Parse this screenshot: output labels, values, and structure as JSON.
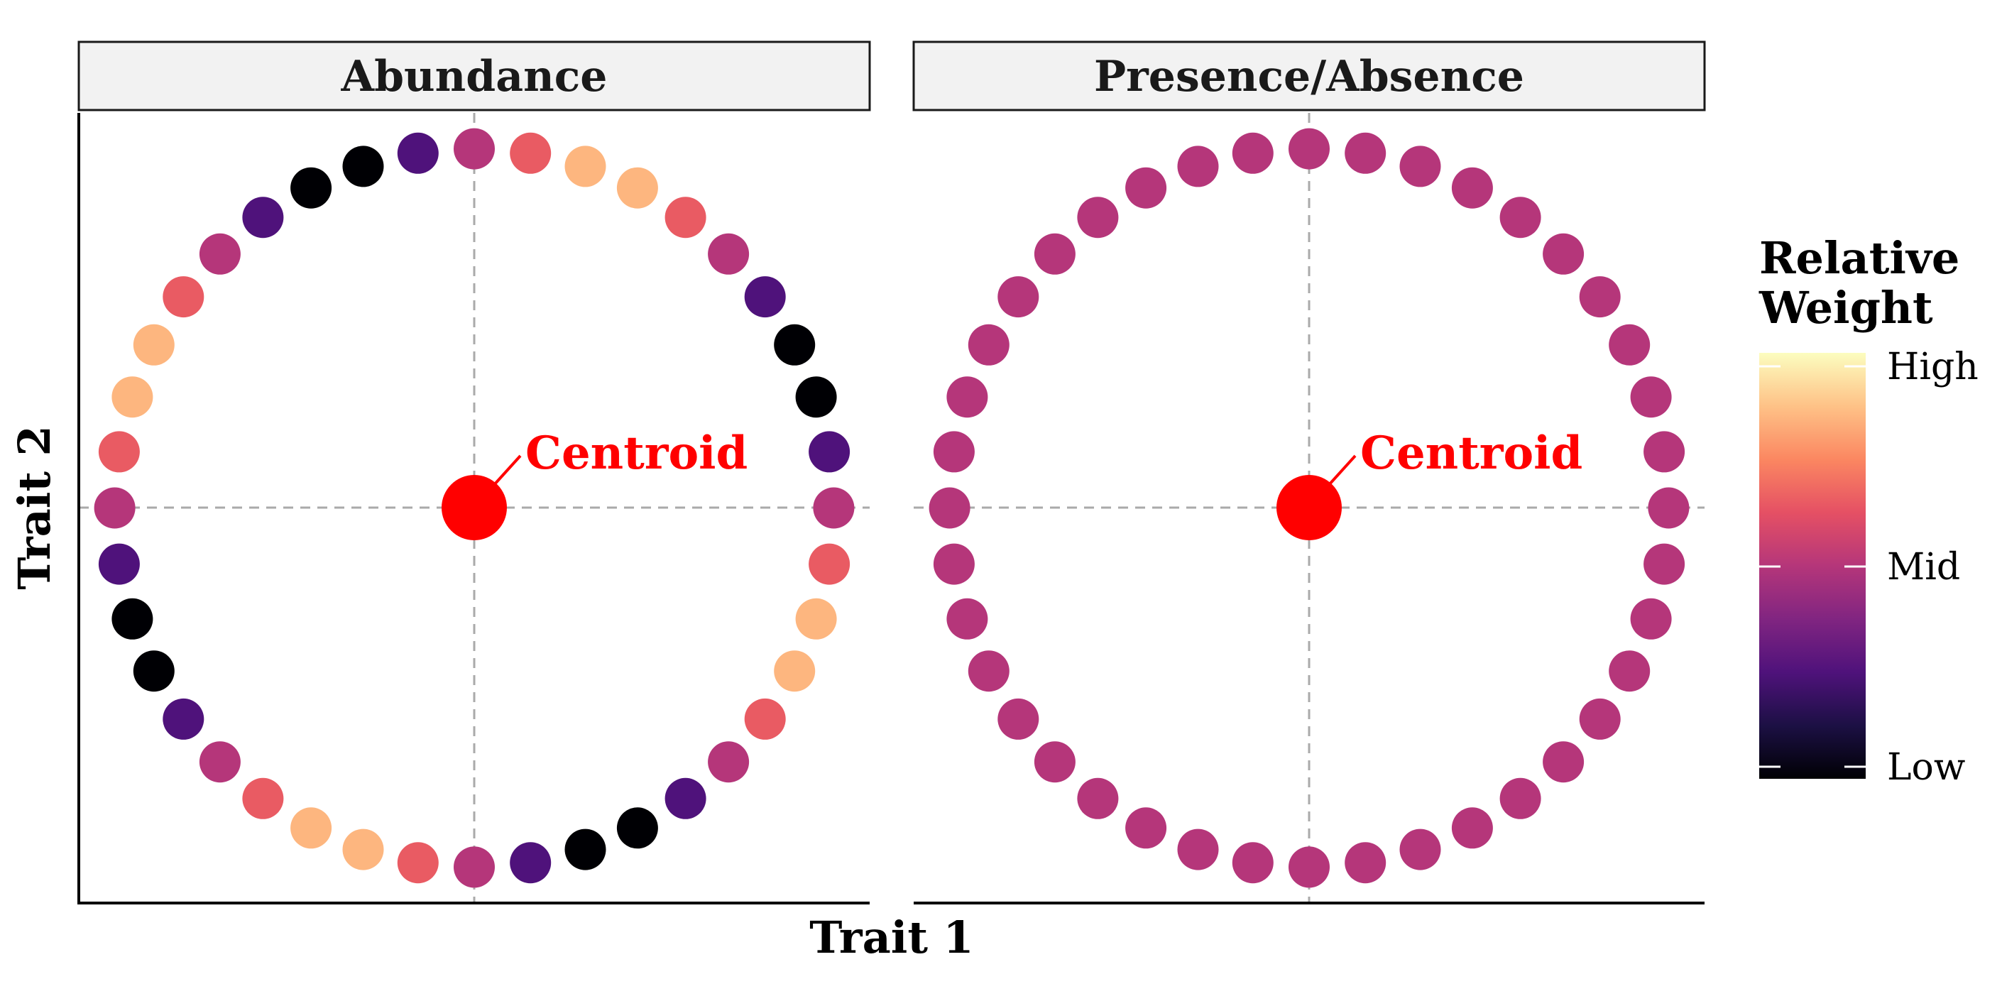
{
  "chart_data": {
    "type": "scatter",
    "xlabel": "Trait 1",
    "ylabel": "Trait 2",
    "xlim": [
      -1.1,
      1.1
    ],
    "ylim": [
      -1.1,
      1.1
    ],
    "grid": false,
    "reference_lines": {
      "x": 0,
      "y": 0,
      "style": "dashed"
    },
    "legend": {
      "title": [
        "Relative",
        "Weight"
      ],
      "type": "colorbar",
      "placement": "right",
      "palette": "magma",
      "labels": [
        "High",
        "Mid",
        "Low"
      ],
      "low_color": "#000004",
      "mid_color": "#b63679",
      "high_color": "#fcfdbf"
    },
    "centroid": {
      "label": "Centroid",
      "x": 0,
      "y": 0,
      "color": "#ff0000"
    },
    "panels": [
      {
        "title": "Abundance",
        "weight_pattern": [
          0.5,
          0.65,
          0.85,
          0.85,
          0.65,
          0.5,
          0.25,
          0.0,
          0.0,
          0.25,
          0.5,
          0.65,
          0.85,
          0.85,
          0.65,
          0.5,
          0.25,
          0.0,
          0.0,
          0.25,
          0.5,
          0.65,
          0.85,
          0.85,
          0.65,
          0.5,
          0.25,
          0.0,
          0.0,
          0.25,
          0.5,
          0.65,
          0.85,
          0.85,
          0.65,
          0.5,
          0.25,
          0.0,
          0.0,
          0.25
        ],
        "n_points": 40,
        "radius": 1
      },
      {
        "title": "Presence/Absence",
        "weight_pattern": [
          0.5,
          0.5,
          0.5,
          0.5,
          0.5,
          0.5,
          0.5,
          0.5,
          0.5,
          0.5,
          0.5,
          0.5,
          0.5,
          0.5,
          0.5,
          0.5,
          0.5,
          0.5,
          0.5,
          0.5,
          0.5,
          0.5,
          0.5,
          0.5,
          0.5,
          0.5,
          0.5,
          0.5,
          0.5,
          0.5,
          0.5,
          0.5,
          0.5,
          0.5,
          0.5,
          0.5,
          0.5,
          0.5,
          0.5,
          0.5
        ],
        "n_points": 40,
        "radius": 1
      }
    ]
  }
}
